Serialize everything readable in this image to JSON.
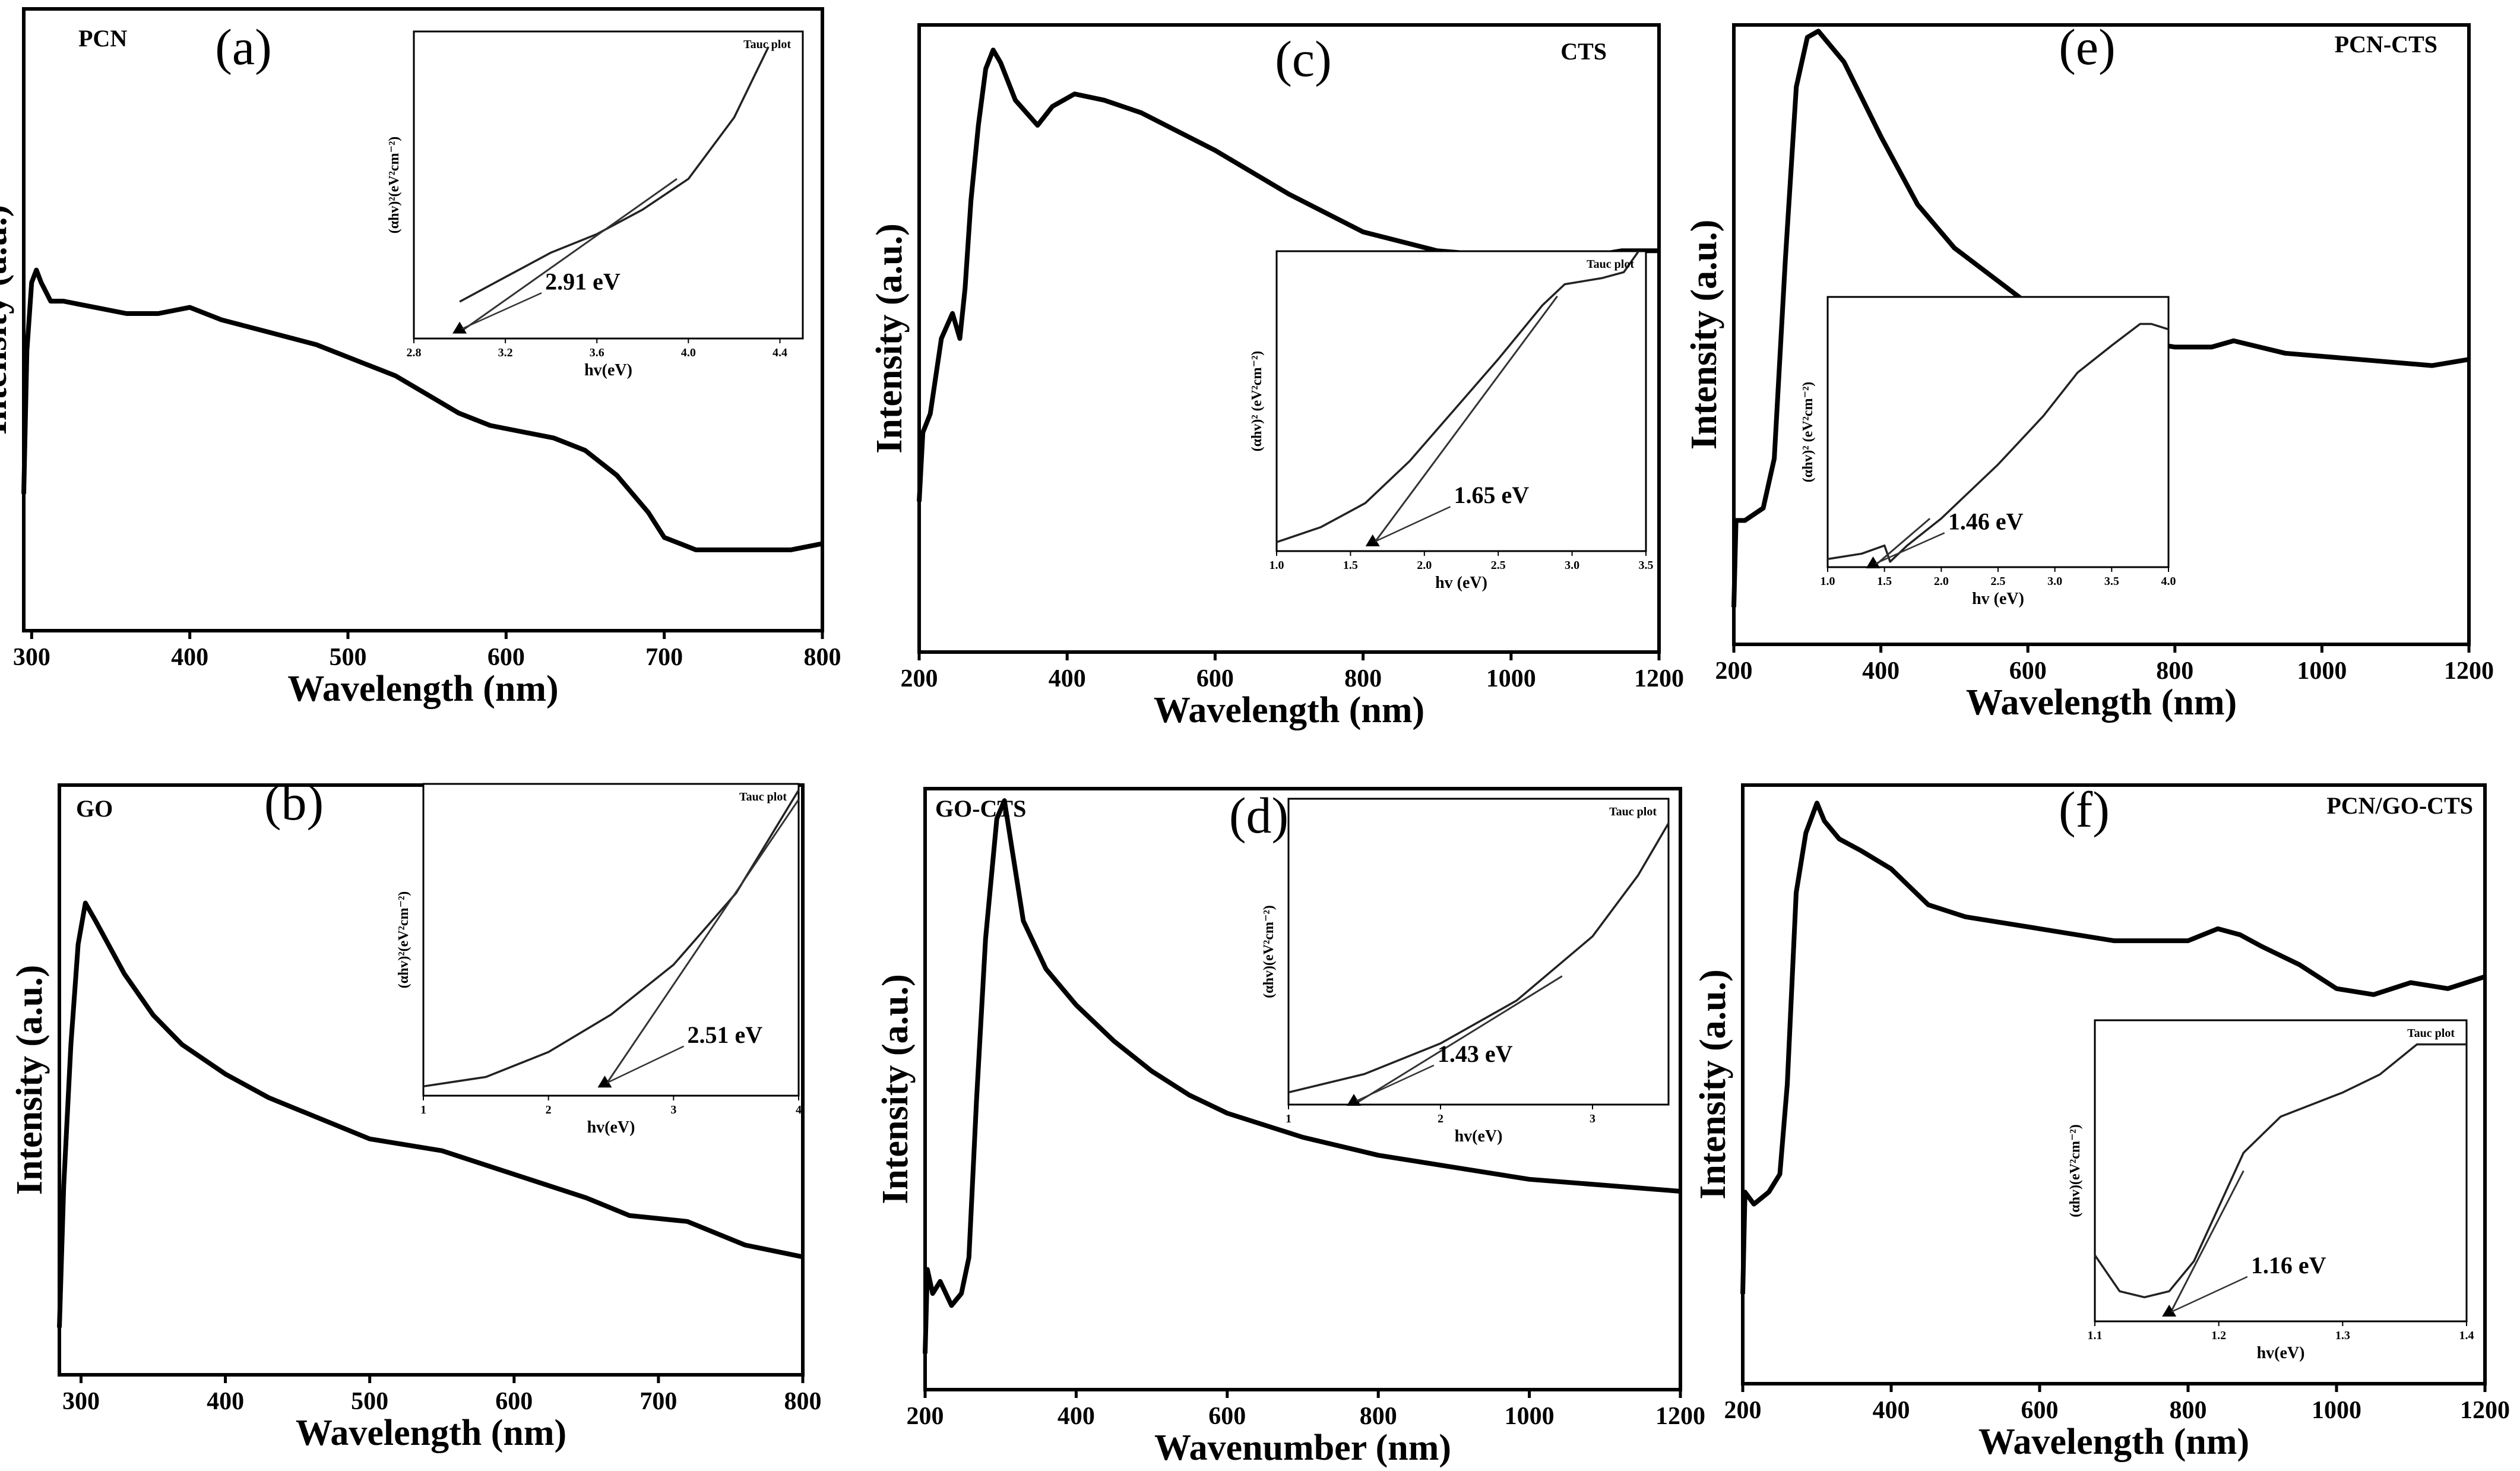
{
  "figure_caption": "",
  "chart_data": [
    {
      "id": "a",
      "type": "line",
      "panel_label": "(a)",
      "sample": "PCN",
      "xlabel": "Wavelength (nm)",
      "ylabel": "Intensity (a.u.)",
      "xlim": [
        295,
        800
      ],
      "ylim": [
        0,
        1
      ],
      "xticks": [
        300,
        400,
        500,
        600,
        700,
        800
      ],
      "x": [
        295,
        297,
        300,
        303,
        306,
        312,
        320,
        340,
        360,
        380,
        400,
        420,
        450,
        480,
        510,
        530,
        550,
        570,
        590,
        610,
        630,
        650,
        670,
        690,
        700,
        710,
        720,
        740,
        760,
        780,
        800
      ],
      "y": [
        0.22,
        0.45,
        0.56,
        0.58,
        0.56,
        0.53,
        0.53,
        0.52,
        0.51,
        0.51,
        0.52,
        0.5,
        0.48,
        0.46,
        0.43,
        0.41,
        0.38,
        0.35,
        0.33,
        0.32,
        0.31,
        0.29,
        0.25,
        0.19,
        0.15,
        0.14,
        0.13,
        0.13,
        0.13,
        0.13,
        0.14
      ],
      "inset": {
        "title": "Tauc plot",
        "xlabel": "hv(eV)",
        "ylabel": "(αhv)²(eV²cm⁻²)",
        "xlim": [
          2.8,
          4.5
        ],
        "ylim": [
          0,
          1
        ],
        "xticks": [
          "2.8",
          "3.2",
          "3.6",
          "4.0",
          "4.4"
        ],
        "x": [
          3.0,
          3.2,
          3.4,
          3.6,
          3.8,
          4.0,
          4.2,
          4.35
        ],
        "y": [
          0.12,
          0.2,
          0.28,
          0.34,
          0.42,
          0.52,
          0.72,
          0.95
        ],
        "fit": [
          [
            3.0,
            0.02
          ],
          [
            3.95,
            0.52
          ]
        ],
        "band_gap_ev": 2.91,
        "annotation": "2.91 eV"
      }
    },
    {
      "id": "b",
      "type": "line",
      "panel_label": "(b)",
      "sample": "GO",
      "xlabel": "Wavelength (nm)",
      "ylabel": "Intensity (a.u.)",
      "xlim": [
        285,
        800
      ],
      "ylim": [
        0,
        1
      ],
      "xticks": [
        300,
        400,
        500,
        600,
        700,
        800
      ],
      "x": [
        285,
        288,
        293,
        298,
        303,
        310,
        330,
        350,
        370,
        400,
        430,
        460,
        500,
        550,
        600,
        650,
        680,
        720,
        760,
        800
      ],
      "y": [
        0.08,
        0.32,
        0.56,
        0.73,
        0.8,
        0.77,
        0.68,
        0.61,
        0.56,
        0.51,
        0.47,
        0.44,
        0.4,
        0.38,
        0.34,
        0.3,
        0.27,
        0.26,
        0.22,
        0.2
      ],
      "inset": {
        "title": "Tauc plot",
        "xlabel": "hv(eV)",
        "ylabel": "(αhv)²(eV²cm⁻²)",
        "xlim": [
          1,
          4
        ],
        "ylim": [
          0,
          1
        ],
        "xticks": [
          "1",
          "2",
          "3",
          "4"
        ],
        "x": [
          1.0,
          1.5,
          2.0,
          2.5,
          3.0,
          3.5,
          4.0
        ],
        "y": [
          0.03,
          0.06,
          0.14,
          0.26,
          0.42,
          0.65,
          0.98
        ],
        "fit": [
          [
            2.45,
            0.03
          ],
          [
            4.0,
            0.95
          ]
        ],
        "band_gap_ev": 2.51,
        "annotation": "2.51 eV"
      }
    },
    {
      "id": "c",
      "type": "line",
      "panel_label": "(c)",
      "sample": "CTS",
      "xlabel": "Wavelength (nm)",
      "ylabel": "Intensity (a.u.)",
      "xlim": [
        200,
        1200
      ],
      "ylim": [
        0,
        1
      ],
      "xticks": [
        200,
        400,
        600,
        800,
        1000,
        1200
      ],
      "x": [
        200,
        205,
        215,
        230,
        245,
        255,
        262,
        270,
        280,
        290,
        300,
        310,
        330,
        360,
        380,
        410,
        450,
        500,
        600,
        700,
        800,
        900,
        1000,
        1100,
        1150,
        1200
      ],
      "y": [
        0.24,
        0.35,
        0.38,
        0.5,
        0.54,
        0.5,
        0.58,
        0.72,
        0.84,
        0.93,
        0.96,
        0.94,
        0.88,
        0.84,
        0.87,
        0.89,
        0.88,
        0.86,
        0.8,
        0.73,
        0.67,
        0.64,
        0.63,
        0.63,
        0.64,
        0.64
      ],
      "inset": {
        "title": "Tauc plot",
        "xlabel": "hv (eV)",
        "ylabel": "(αhv)² (eV²cm⁻²)",
        "xlim": [
          1.0,
          3.5
        ],
        "ylim": [
          0,
          1
        ],
        "xticks": [
          "1.0",
          "1.5",
          "2.0",
          "2.5",
          "3.0",
          "3.5"
        ],
        "x": [
          1.0,
          1.3,
          1.6,
          1.9,
          2.2,
          2.5,
          2.8,
          2.95,
          3.2,
          3.35,
          3.45
        ],
        "y": [
          0.03,
          0.08,
          0.16,
          0.3,
          0.47,
          0.64,
          0.82,
          0.89,
          0.91,
          0.93,
          1.0
        ],
        "fit": [
          [
            1.65,
            0.02
          ],
          [
            2.9,
            0.85
          ]
        ],
        "band_gap_ev": 1.65,
        "annotation": "1.65 eV"
      }
    },
    {
      "id": "d",
      "type": "line",
      "panel_label": "(d)",
      "sample": "GO-CTS",
      "xlabel": "Wavenumber (nm)",
      "ylabel": "Intensity (a.u.)",
      "xlim": [
        200,
        1200
      ],
      "ylim": [
        0,
        1
      ],
      "xticks": [
        200,
        400,
        600,
        800,
        1000,
        1200
      ],
      "x": [
        200,
        203,
        210,
        220,
        235,
        248,
        258,
        268,
        280,
        295,
        305,
        315,
        330,
        360,
        400,
        450,
        500,
        550,
        600,
        700,
        800,
        900,
        1000,
        1100,
        1200
      ],
      "y": [
        0.06,
        0.2,
        0.16,
        0.18,
        0.14,
        0.16,
        0.22,
        0.48,
        0.75,
        0.95,
        0.98,
        0.9,
        0.78,
        0.7,
        0.64,
        0.58,
        0.53,
        0.49,
        0.46,
        0.42,
        0.39,
        0.37,
        0.35,
        0.34,
        0.33
      ],
      "inset": {
        "title": "Tauc plot",
        "xlabel": "hv(eV)",
        "ylabel": "(αhv)(eV²cm⁻²)",
        "xlim": [
          1,
          3.5
        ],
        "ylim": [
          0,
          1
        ],
        "xticks": [
          "1",
          "2",
          "3"
        ],
        "x": [
          1.0,
          1.5,
          2.0,
          2.5,
          3.0,
          3.3,
          3.5
        ],
        "y": [
          0.04,
          0.1,
          0.2,
          0.34,
          0.55,
          0.75,
          0.92
        ],
        "fit": [
          [
            1.43,
            0.0
          ],
          [
            2.8,
            0.42
          ]
        ],
        "band_gap_ev": 1.43,
        "annotation": "1.43 eV"
      }
    },
    {
      "id": "e",
      "type": "line",
      "panel_label": "(e)",
      "sample": "PCN-CTS",
      "xlabel": "Wavelength (nm)",
      "ylabel": "Intensity (a.u.)",
      "xlim": [
        200,
        1200
      ],
      "ylim": [
        0,
        1
      ],
      "xticks": [
        200,
        400,
        600,
        800,
        1000,
        1200
      ],
      "x": [
        200,
        203,
        215,
        240,
        255,
        270,
        285,
        300,
        315,
        350,
        400,
        450,
        500,
        600,
        700,
        800,
        850,
        880,
        950,
        1050,
        1150,
        1200
      ],
      "y": [
        0.06,
        0.2,
        0.2,
        0.22,
        0.3,
        0.62,
        0.9,
        0.98,
        0.99,
        0.94,
        0.82,
        0.71,
        0.64,
        0.55,
        0.5,
        0.48,
        0.48,
        0.49,
        0.47,
        0.46,
        0.45,
        0.46
      ],
      "inset": {
        "title": "",
        "xlabel": "hv (eV)",
        "ylabel": "(αhv)² (eV²cm⁻²)",
        "xlim": [
          1.0,
          4.0
        ],
        "ylim": [
          0,
          1
        ],
        "xticks": [
          "1.0",
          "1.5",
          "2.0",
          "2.5",
          "3.0",
          "3.5",
          "4.0"
        ],
        "x": [
          1.0,
          1.3,
          1.5,
          1.55,
          1.7,
          2.0,
          2.5,
          2.9,
          3.2,
          3.5,
          3.75,
          3.85,
          4.0
        ],
        "y": [
          0.03,
          0.05,
          0.08,
          0.02,
          0.08,
          0.18,
          0.38,
          0.56,
          0.72,
          0.82,
          0.9,
          0.9,
          0.88
        ],
        "fit": [
          [
            1.4,
            0.0
          ],
          [
            1.9,
            0.18
          ]
        ],
        "band_gap_ev": 1.46,
        "annotation": "1.46 eV"
      }
    },
    {
      "id": "f",
      "type": "line",
      "panel_label": "(f)",
      "sample": "PCN/GO-CTS",
      "xlabel": "Wavelength (nm)",
      "ylabel": "Intensity (a.u.)",
      "xlim": [
        200,
        1200
      ],
      "ylim": [
        0,
        1
      ],
      "xticks": [
        200,
        400,
        600,
        800,
        1000,
        1200
      ],
      "x": [
        200,
        203,
        215,
        235,
        250,
        260,
        272,
        285,
        300,
        310,
        330,
        360,
        400,
        450,
        500,
        600,
        700,
        800,
        840,
        870,
        900,
        950,
        1000,
        1050,
        1100,
        1150,
        1200
      ],
      "y": [
        0.15,
        0.32,
        0.3,
        0.32,
        0.35,
        0.5,
        0.82,
        0.92,
        0.97,
        0.94,
        0.91,
        0.89,
        0.86,
        0.8,
        0.78,
        0.76,
        0.74,
        0.74,
        0.76,
        0.75,
        0.73,
        0.7,
        0.66,
        0.65,
        0.67,
        0.66,
        0.68
      ],
      "inset": {
        "title": "Tauc plot",
        "xlabel": "hv(eV)",
        "ylabel": "(αhv)(eV²cm⁻²)",
        "xlim": [
          1.1,
          1.4
        ],
        "ylim": [
          0,
          1
        ],
        "xticks": [
          "1.1",
          "1.2",
          "1.3",
          "1.4"
        ],
        "x": [
          1.1,
          1.12,
          1.14,
          1.16,
          1.18,
          1.2,
          1.22,
          1.25,
          1.3,
          1.33,
          1.36,
          1.4
        ],
        "y": [
          0.22,
          0.1,
          0.08,
          0.1,
          0.2,
          0.38,
          0.56,
          0.68,
          0.76,
          0.82,
          0.92,
          0.92
        ],
        "fit": [
          [
            1.16,
            0.02
          ],
          [
            1.22,
            0.5
          ]
        ],
        "band_gap_ev": 1.16,
        "annotation": "1.16 eV"
      }
    }
  ]
}
